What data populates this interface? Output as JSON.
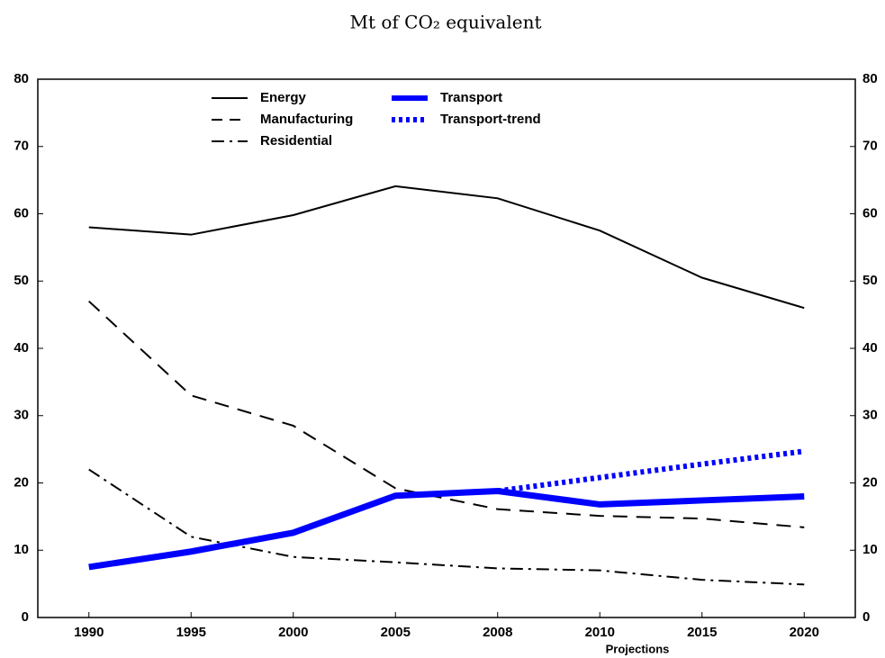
{
  "chart_data": {
    "type": "line",
    "title": "Mt of CO₂ equivalent",
    "categories": [
      "1990",
      "1995",
      "2000",
      "2005",
      "2008",
      "2010",
      "2015",
      "2020"
    ],
    "annotation": "Projections",
    "series": [
      {
        "name": "Energy",
        "color": "#000000",
        "dash": "solid",
        "linewidth": 2,
        "values": [
          58.0,
          56.9,
          59.8,
          64.1,
          62.3,
          57.5,
          50.5,
          46.0
        ]
      },
      {
        "name": "Manufacturing",
        "color": "#000000",
        "dash": "dashed",
        "linewidth": 2,
        "values": [
          47.0,
          33.0,
          28.5,
          19.2,
          16.1,
          15.1,
          14.7,
          13.4
        ]
      },
      {
        "name": "Residential",
        "color": "#000000",
        "dash": "dashdot",
        "linewidth": 2,
        "values": [
          22.0,
          12.0,
          9.0,
          8.2,
          7.3,
          7.0,
          5.6,
          4.9
        ]
      },
      {
        "name": "Transport",
        "color": "#0000ff",
        "dash": "solid",
        "linewidth": 7,
        "values": [
          7.5,
          9.8,
          12.6,
          18.1,
          18.8,
          16.8,
          17.4,
          18.0
        ]
      },
      {
        "name": "Transport-trend",
        "color": "#0000ff",
        "dash": "dotted",
        "linewidth": 6,
        "values": [
          null,
          null,
          null,
          null,
          18.8,
          20.8,
          22.8,
          24.7
        ]
      }
    ],
    "ylim": [
      0,
      80
    ],
    "yticks": [
      0,
      10,
      20,
      30,
      40,
      50,
      60,
      70,
      80
    ],
    "y2lim": [
      0,
      80
    ],
    "y2ticks": [
      0,
      10,
      20,
      30,
      40,
      50,
      60,
      70,
      80
    ],
    "grid": false,
    "legend": "upper center"
  }
}
